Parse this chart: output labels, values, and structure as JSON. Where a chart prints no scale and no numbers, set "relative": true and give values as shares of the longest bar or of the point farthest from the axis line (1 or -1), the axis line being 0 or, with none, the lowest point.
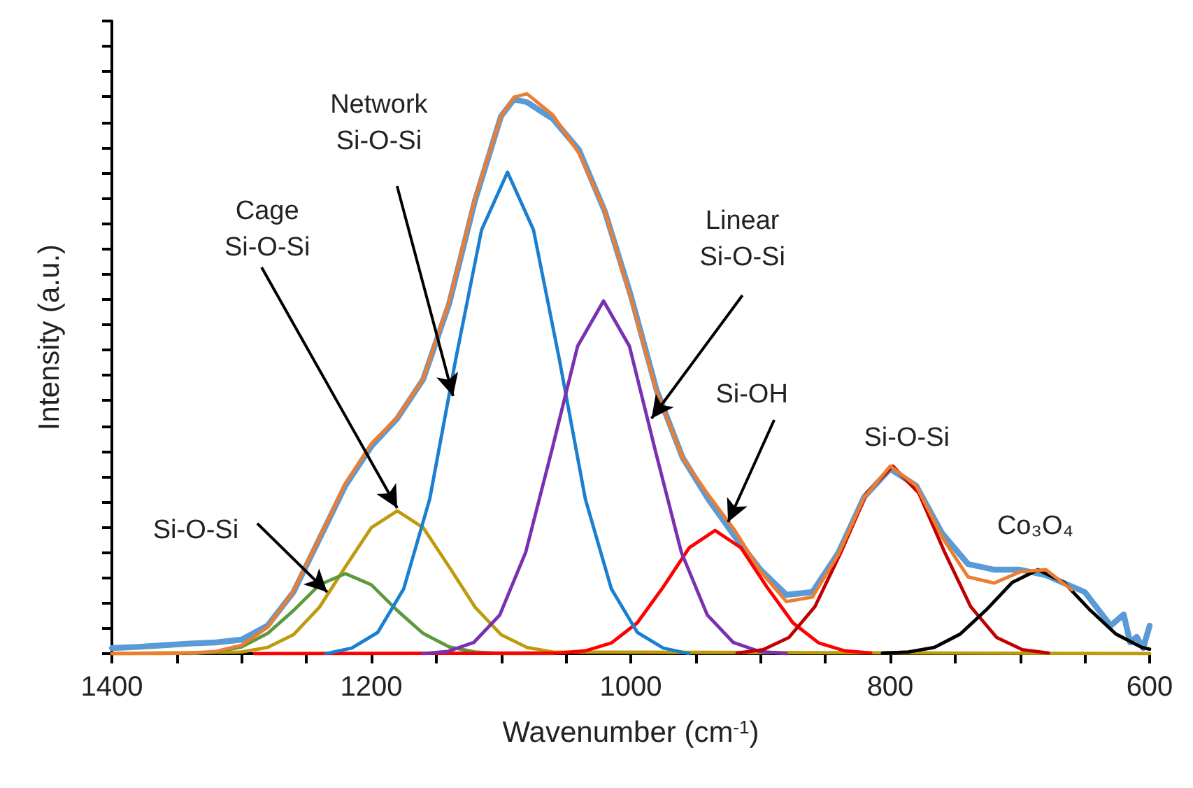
{
  "chart_data": {
    "type": "line",
    "relative": true,
    "xlabel": "Wavenumber (cm$^{-1}$)",
    "ylabel": "Intensity (a.u.)",
    "xlim": [
      1400,
      600
    ],
    "xticks": [
      1400,
      {
        "value": 1350,
        "label": null
      },
      {
        "value": 1300,
        "label": null
      },
      {
        "value": 1250,
        "label": null
      },
      1200,
      {
        "value": 1150,
        "label": null
      },
      {
        "value": 1100,
        "label": null
      },
      {
        "value": 1050,
        "label": null
      },
      1000,
      {
        "value": 950,
        "label": null
      },
      {
        "value": 900,
        "label": null
      },
      {
        "value": 850,
        "label": null
      },
      800,
      {
        "value": 750,
        "label": null
      },
      {
        "value": 700,
        "label": null
      },
      {
        "value": 650,
        "label": null
      },
      600
    ],
    "series": [
      {
        "color": "#5b9bd5",
        "x": [
          1400,
          1380,
          1360,
          1340,
          1320,
          1300,
          1280,
          1260,
          1240,
          1220,
          1200,
          1180,
          1160,
          1140,
          1120,
          1100,
          1090,
          1080,
          1060,
          1040,
          1020,
          1000,
          980,
          960,
          940,
          920,
          900,
          880,
          860,
          840,
          820,
          800,
          780,
          760,
          740,
          720,
          700,
          680,
          660,
          650,
          640,
          630,
          620,
          615,
          610,
          605,
          600
        ],
        "values": [
          0.01,
          0.012,
          0.015,
          0.018,
          0.02,
          0.025,
          0.05,
          0.11,
          0.205,
          0.3,
          0.37,
          0.42,
          0.49,
          0.625,
          0.81,
          0.96,
          0.99,
          0.985,
          0.955,
          0.9,
          0.79,
          0.64,
          0.47,
          0.35,
          0.275,
          0.21,
          0.15,
          0.105,
          0.11,
          0.18,
          0.28,
          0.33,
          0.3,
          0.215,
          0.16,
          0.15,
          0.15,
          0.14,
          0.12,
          0.11,
          0.08,
          0.05,
          0.07,
          0.02,
          0.03,
          0.01,
          0.05
        ]
      },
      {
        "color": "#bf9b0c",
        "x": [
          1400,
          1300,
          1280,
          1260,
          1240,
          1220,
          1200,
          1180,
          1160,
          1140,
          1120,
          1100,
          1080,
          1060,
          600
        ],
        "values": [
          0,
          0.003,
          0.011,
          0.034,
          0.083,
          0.155,
          0.225,
          0.255,
          0.225,
          0.155,
          0.083,
          0.034,
          0.011,
          0.003,
          0
        ]
      },
      {
        "color": "#5b9a3c",
        "x": [
          1340,
          1320,
          1300,
          1280,
          1260,
          1240,
          1220,
          1200,
          1180,
          1160,
          1140,
          1120,
          1100,
          1060
        ],
        "values": [
          0,
          0.003,
          0.012,
          0.036,
          0.077,
          0.123,
          0.143,
          0.123,
          0.077,
          0.036,
          0.012,
          0.003,
          0,
          0
        ]
      },
      {
        "color": "#ff0000",
        "x": [
          1290,
          1055,
          1035,
          1015,
          995,
          975,
          955,
          935,
          915,
          895,
          875,
          855,
          835,
          815
        ],
        "values": [
          0,
          0.001,
          0.005,
          0.019,
          0.055,
          0.119,
          0.189,
          0.22,
          0.189,
          0.119,
          0.055,
          0.019,
          0.005,
          0.001
        ]
      },
      {
        "color": "#1a7fd0",
        "x": [
          1235,
          1215,
          1195,
          1175,
          1155,
          1135,
          1115,
          1095,
          1075,
          1055,
          1035,
          1015,
          995,
          975,
          955
        ],
        "values": [
          0,
          0.01,
          0.038,
          0.116,
          0.276,
          0.525,
          0.757,
          0.86,
          0.757,
          0.525,
          0.276,
          0.116,
          0.038,
          0.01,
          0
        ]
      },
      {
        "color": "#7a30b0",
        "x": [
          1160,
          1141,
          1121,
          1101,
          1081,
          1061,
          1041,
          1021,
          1001,
          981,
          961,
          941,
          921,
          901,
          880
        ],
        "values": [
          0,
          0.004,
          0.02,
          0.069,
          0.181,
          0.362,
          0.549,
          0.63,
          0.549,
          0.362,
          0.181,
          0.069,
          0.02,
          0.004,
          0
        ]
      },
      {
        "color": "#c00000",
        "x": [
          918,
          898,
          878,
          858,
          838,
          818,
          798,
          778,
          758,
          738,
          718,
          698,
          678
        ],
        "values": [
          0.001,
          0.007,
          0.029,
          0.084,
          0.181,
          0.287,
          0.335,
          0.287,
          0.181,
          0.084,
          0.029,
          0.007,
          0.001
        ]
      },
      {
        "color": "#000000",
        "x": [
          806,
          786,
          766,
          746,
          726,
          706,
          686,
          666,
          646,
          626,
          606,
          600
        ],
        "values": [
          0.001,
          0.003,
          0.011,
          0.035,
          0.078,
          0.127,
          0.15,
          0.127,
          0.078,
          0.035,
          0.011,
          0.008
        ]
      },
      {
        "color": "#ed7d31",
        "x": [
          1400,
          1380,
          1360,
          1340,
          1320,
          1300,
          1280,
          1260,
          1240,
          1220,
          1200,
          1180,
          1160,
          1140,
          1120,
          1100,
          1090,
          1080,
          1060,
          1040,
          1020,
          1000,
          980,
          960,
          940,
          920,
          900,
          880,
          860,
          840,
          820,
          800,
          780,
          760,
          740,
          720,
          700,
          680,
          660
        ],
        "values": [
          0,
          0,
          0,
          0.001,
          0.004,
          0.015,
          0.047,
          0.112,
          0.207,
          0.304,
          0.375,
          0.422,
          0.491,
          0.629,
          0.815,
          0.96,
          0.994,
          1.0,
          0.962,
          0.894,
          0.791,
          0.635,
          0.467,
          0.35,
          0.283,
          0.221,
          0.147,
          0.093,
          0.101,
          0.177,
          0.279,
          0.335,
          0.3,
          0.208,
          0.137,
          0.126,
          0.146,
          0.15,
          0.114
        ]
      }
    ],
    "annotations": [
      {
        "text": "Si-O-Si",
        "x": 1234,
        "y": 0.11
      },
      {
        "text": "Cage\nSi-O-Si",
        "x": 1180,
        "y": 0.26
      },
      {
        "text": "Network\nSi-O-Si",
        "x": 1137,
        "y": 0.46
      },
      {
        "text": "Linear\nSi-O-Si",
        "x": 984,
        "y": 0.42
      },
      {
        "text": "Si-OH",
        "x": 925,
        "y": 0.235
      },
      {
        "text": "Si-O-Si",
        "x": 798,
        "y": 0.335
      },
      {
        "text": "Co₃O₄",
        "x": 686,
        "y": 0.15
      }
    ]
  }
}
